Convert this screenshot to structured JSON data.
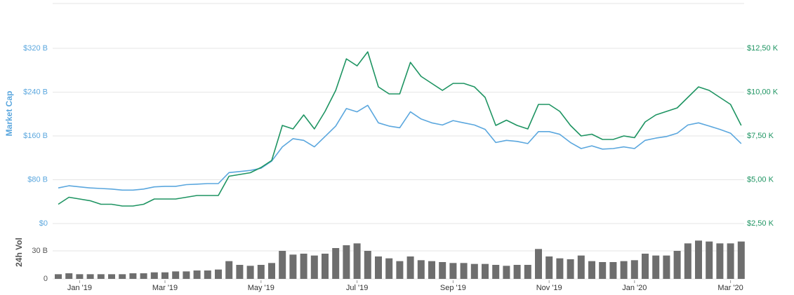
{
  "chart_data": [
    {
      "type": "line",
      "ylabel": "Market Cap",
      "ylim": [
        0,
        400
      ],
      "yticks": [
        {
          "value": 0,
          "label": "$0"
        },
        {
          "value": 80,
          "label": "$80 B"
        },
        {
          "value": 160,
          "label": "$160 B"
        },
        {
          "value": 240,
          "label": "$240 B"
        },
        {
          "value": 320,
          "label": "$320 B"
        }
      ],
      "y2lim": [
        2.5,
        15
      ],
      "y2ticks": [
        {
          "value": 2.5,
          "label": "$2,50 K"
        },
        {
          "value": 5,
          "label": "$5,00 K"
        },
        {
          "value": 7.5,
          "label": "$7,50 K"
        },
        {
          "value": 10,
          "label": "$10,00 K"
        },
        {
          "value": 12.5,
          "label": "$12,50 K"
        }
      ],
      "grid": true,
      "series": [
        {
          "color": "#5ba7de",
          "values": [
            65,
            69,
            67,
            65,
            64,
            63,
            61,
            61,
            63,
            67,
            68,
            68,
            71,
            72,
            73,
            73,
            93,
            95,
            97,
            101,
            114,
            140,
            155,
            152,
            140,
            159,
            178,
            210,
            204,
            216,
            184,
            178,
            175,
            204,
            191,
            184,
            180,
            188,
            184,
            180,
            172,
            148,
            152,
            150,
            146,
            168,
            168,
            163,
            148,
            137,
            142,
            136,
            137,
            140,
            137,
            152,
            156,
            159,
            165,
            180,
            184,
            178,
            172,
            165,
            146
          ]
        },
        {
          "color": "#1e9462",
          "axis": "y2",
          "values": [
            3.6,
            4.0,
            3.9,
            3.8,
            3.6,
            3.6,
            3.5,
            3.5,
            3.6,
            3.9,
            3.9,
            3.9,
            4.0,
            4.1,
            4.1,
            4.1,
            5.2,
            5.3,
            5.4,
            5.7,
            6.1,
            8.1,
            7.9,
            8.7,
            7.9,
            8.9,
            10.1,
            11.9,
            11.5,
            12.3,
            10.3,
            9.9,
            9.9,
            11.7,
            10.9,
            10.5,
            10.1,
            10.5,
            10.5,
            10.3,
            9.7,
            8.1,
            8.4,
            8.1,
            7.9,
            9.3,
            9.3,
            8.9,
            8.1,
            7.5,
            7.6,
            7.3,
            7.3,
            7.5,
            7.4,
            8.3,
            8.7,
            8.9,
            9.1,
            9.7,
            10.3,
            10.1,
            9.7,
            9.3,
            8.1
          ]
        }
      ]
    },
    {
      "type": "bar",
      "ylabel": "24h Vol",
      "color": "#6e6e6e",
      "ylim": [
        0,
        60
      ],
      "yticks": [
        0,
        {
          "value": 30,
          "label": "30 B"
        }
      ],
      "grid": true,
      "categories": [
        null,
        null,
        "Jan '19",
        null,
        null,
        null,
        null,
        null,
        null,
        null,
        "Mar '19",
        null,
        null,
        null,
        null,
        null,
        null,
        null,
        null,
        "May '19",
        null,
        null,
        null,
        null,
        null,
        null,
        null,
        null,
        "Jul '19",
        null,
        null,
        null,
        null,
        null,
        null,
        null,
        null,
        "Sep '19",
        null,
        null,
        null,
        null,
        null,
        null,
        null,
        null,
        "Nov '19",
        null,
        null,
        null,
        null,
        null,
        null,
        null,
        "Jan '20",
        null,
        null,
        null,
        null,
        null,
        null,
        null,
        null,
        "Mar '20",
        null
      ],
      "values": [
        5,
        6,
        5,
        5,
        5,
        5,
        5,
        6,
        6,
        7,
        7,
        8,
        8,
        9,
        9,
        10,
        19,
        15,
        14,
        15,
        17,
        30,
        26,
        27,
        25,
        27,
        33,
        36,
        38,
        30,
        24,
        22,
        19,
        24,
        20,
        19,
        18,
        17,
        17,
        16,
        16,
        15,
        14,
        15,
        15,
        32,
        24,
        22,
        21,
        25,
        19,
        18,
        18,
        19,
        20,
        27,
        25,
        25,
        30,
        38,
        41,
        40,
        38,
        38,
        40
      ]
    }
  ]
}
